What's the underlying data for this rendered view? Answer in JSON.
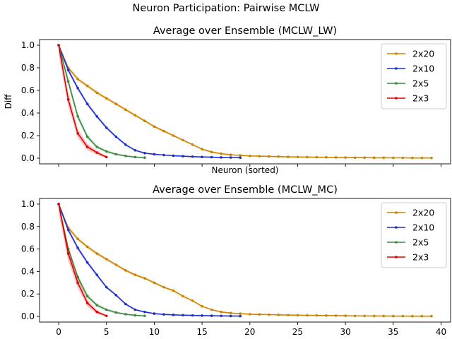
{
  "figure_title": "Neuron Participation: Pairwise MCLW",
  "colors": {
    "2x20": "#cc8400",
    "2x10": "#1f2fcc",
    "2x5": "#3b8a40",
    "2x3": "#e00000"
  },
  "chart_data": [
    {
      "type": "line",
      "title": "Average over Ensemble (MCLW_LW)",
      "xlabel": "Neuron (sorted)",
      "ylabel": "Diff",
      "xlim": [
        -2,
        41
      ],
      "ylim": [
        -0.05,
        1.05
      ],
      "xticks": [
        0,
        5,
        10,
        15,
        20,
        25,
        30,
        35,
        40
      ],
      "yticks": [
        0.0,
        0.2,
        0.4,
        0.6,
        0.8,
        1.0
      ],
      "show_xtick_labels": false,
      "legend": "top-right",
      "series": [
        {
          "name": "2x20",
          "band": 0.02,
          "values": [
            1.0,
            0.8,
            0.7,
            0.64,
            0.58,
            0.53,
            0.48,
            0.43,
            0.38,
            0.33,
            0.28,
            0.24,
            0.2,
            0.16,
            0.12,
            0.08,
            0.055,
            0.04,
            0.03,
            0.025,
            0.02,
            0.018,
            0.016,
            0.014,
            0.012,
            0.011,
            0.01,
            0.009,
            0.008,
            0.007,
            0.006,
            0.005,
            0.005,
            0.004,
            0.004,
            0.003,
            0.003,
            0.002,
            0.002,
            0.002
          ]
        },
        {
          "name": "2x10",
          "band": 0.025,
          "values": [
            1.0,
            0.78,
            0.62,
            0.48,
            0.37,
            0.27,
            0.19,
            0.12,
            0.07,
            0.045,
            0.035,
            0.028,
            0.022,
            0.018,
            0.014,
            0.011,
            0.009,
            0.007,
            0.006,
            0.005
          ]
        },
        {
          "name": "2x5",
          "band": 0.05,
          "values": [
            1.0,
            0.68,
            0.37,
            0.19,
            0.1,
            0.06,
            0.035,
            0.02,
            0.01,
            0.005
          ]
        },
        {
          "name": "2x3",
          "band": 0.09,
          "values": [
            1.0,
            0.52,
            0.22,
            0.1,
            0.05,
            0.01
          ]
        }
      ]
    },
    {
      "type": "line",
      "title": "Average over Ensemble (MCLW_MC)",
      "xlabel": "",
      "ylabel": "",
      "xlim": [
        -2,
        41
      ],
      "ylim": [
        -0.05,
        1.05
      ],
      "xticks": [
        0,
        5,
        10,
        15,
        20,
        25,
        30,
        35,
        40
      ],
      "yticks": [
        0.0,
        0.2,
        0.4,
        0.6,
        0.8,
        1.0
      ],
      "show_xtick_labels": true,
      "legend": "top-right",
      "series": [
        {
          "name": "2x20",
          "band": 0.02,
          "values": [
            1.0,
            0.79,
            0.69,
            0.62,
            0.56,
            0.51,
            0.46,
            0.41,
            0.37,
            0.34,
            0.3,
            0.26,
            0.23,
            0.18,
            0.14,
            0.09,
            0.06,
            0.04,
            0.03,
            0.025,
            0.02,
            0.018,
            0.016,
            0.014,
            0.012,
            0.011,
            0.01,
            0.009,
            0.008,
            0.007,
            0.006,
            0.005,
            0.005,
            0.004,
            0.004,
            0.003,
            0.003,
            0.002,
            0.002,
            0.002
          ]
        },
        {
          "name": "2x10",
          "band": 0.025,
          "values": [
            1.0,
            0.77,
            0.61,
            0.48,
            0.37,
            0.26,
            0.19,
            0.11,
            0.06,
            0.04,
            0.025,
            0.018,
            0.014,
            0.011,
            0.009,
            0.007,
            0.006,
            0.005,
            0.004,
            0.003
          ]
        },
        {
          "name": "2x5",
          "band": 0.05,
          "values": [
            1.0,
            0.6,
            0.35,
            0.18,
            0.1,
            0.06,
            0.035,
            0.02,
            0.01,
            0.005
          ]
        },
        {
          "name": "2x3",
          "band": 0.09,
          "values": [
            1.0,
            0.56,
            0.3,
            0.12,
            0.04,
            0.005
          ]
        }
      ]
    }
  ]
}
